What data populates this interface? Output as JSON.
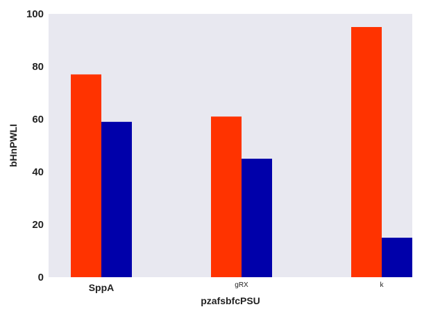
{
  "chart_data": {
    "type": "bar",
    "title": "",
    "xlabel": "pzafsbfcPSU",
    "ylabel": "bHnPWLI",
    "categories": [
      "SppA",
      "gRX",
      "k"
    ],
    "series": [
      {
        "values": [
          77,
          61,
          95
        ],
        "color": "#ff3300"
      },
      {
        "values": [
          59,
          45,
          15
        ],
        "color": "#0000aa"
      }
    ],
    "ylim": [
      0,
      100
    ],
    "yticks": [
      "0",
      "20",
      "40",
      "60",
      "80",
      "100"
    ],
    "grid": false,
    "legend": "none",
    "plot_background": "#e8e8f0"
  }
}
